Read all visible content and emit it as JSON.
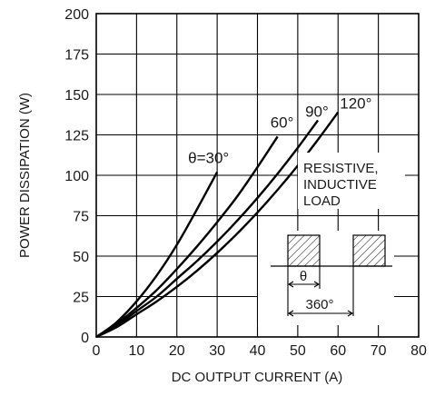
{
  "chart_data": {
    "type": "line",
    "title": "",
    "xlabel": "DC OUTPUT CURRENT    (A)",
    "ylabel": "POWER DISSIPATION    (W)",
    "xlim": [
      0,
      80
    ],
    "ylim": [
      0,
      200
    ],
    "x_ticks": [
      "0",
      "10",
      "20",
      "30",
      "40",
      "50",
      "60",
      "70",
      "80"
    ],
    "y_ticks": [
      "0",
      "25",
      "50",
      "75",
      "100",
      "125",
      "150",
      "175",
      "200"
    ],
    "x_tick_values": [
      0,
      10,
      20,
      30,
      40,
      50,
      60,
      70,
      80
    ],
    "y_tick_values": [
      0,
      25,
      50,
      75,
      100,
      125,
      150,
      175,
      200
    ],
    "grid": true,
    "series": [
      {
        "name": "θ=30°",
        "x": [
          0,
          5,
          10,
          15,
          20,
          25,
          30
        ],
        "y": [
          0,
          9,
          22,
          38,
          57,
          79,
          102
        ]
      },
      {
        "name": "60°",
        "x": [
          0,
          5,
          10,
          15,
          20,
          25,
          30,
          35,
          40,
          45
        ],
        "y": [
          0,
          8,
          18,
          29,
          42,
          56,
          71,
          87,
          105,
          124
        ]
      },
      {
        "name": "90°",
        "x": [
          0,
          5,
          10,
          15,
          20,
          25,
          30,
          35,
          40,
          45,
          50,
          55
        ],
        "y": [
          0,
          7,
          16,
          25,
          36,
          47,
          59,
          72,
          86,
          101,
          117,
          134
        ]
      },
      {
        "name": "120°",
        "x": [
          0,
          5,
          10,
          15,
          20,
          25,
          30,
          35,
          40,
          45,
          50,
          55,
          60
        ],
        "y": [
          0,
          6,
          14,
          22,
          31,
          41,
          52,
          64,
          77,
          91,
          106,
          122,
          139
        ]
      }
    ],
    "annotations": {
      "load_lines": [
        "RESISTIVE,",
        "INDUCTIVE",
        "LOAD"
      ],
      "theta_label": "θ",
      "period_label": "360°"
    }
  }
}
